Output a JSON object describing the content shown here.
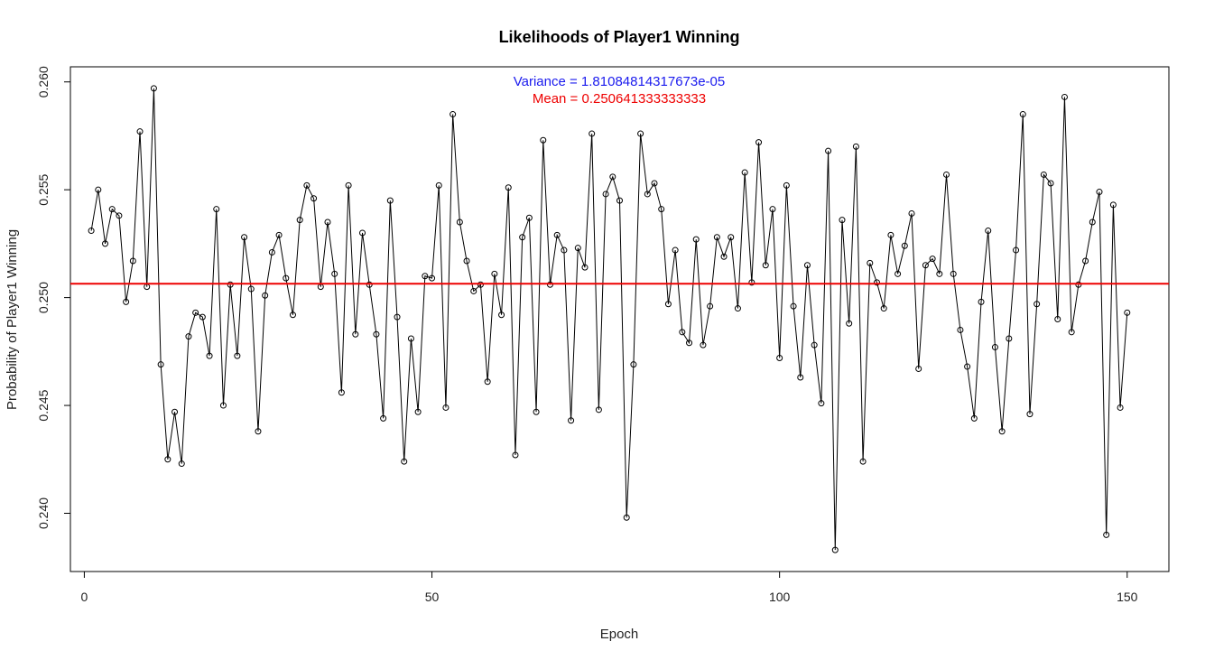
{
  "chart_data": {
    "type": "line",
    "title": "Likelihoods of Player1 Winning",
    "xlabel": "Epoch",
    "ylabel": "Probability of Player1 Winning",
    "xlim": [
      -2,
      156
    ],
    "ylim": [
      0.2373,
      0.2607
    ],
    "xticks": [
      0,
      50,
      100,
      150
    ],
    "yticks": [
      0.24,
      0.245,
      0.25,
      0.255,
      0.26
    ],
    "ytick_labels": [
      "0.240",
      "0.245",
      "0.250",
      "0.255",
      "0.260"
    ],
    "xtick_labels": [
      "0",
      "50",
      "100",
      "150"
    ],
    "grid": false,
    "series": [
      {
        "x": [
          1,
          2,
          3,
          4,
          5,
          6,
          7,
          8,
          9,
          10,
          11,
          12,
          13,
          14,
          15,
          16,
          17,
          18,
          19,
          20,
          21,
          22,
          23,
          24,
          25,
          26,
          27,
          28,
          29,
          30,
          31,
          32,
          33,
          34,
          35,
          36,
          37,
          38,
          39,
          40,
          41,
          42,
          43,
          44,
          45,
          46,
          47,
          48,
          49,
          50,
          51,
          52,
          53,
          54,
          55,
          56,
          57,
          58,
          59,
          60,
          61,
          62,
          63,
          64,
          65,
          66,
          67,
          68,
          69,
          70,
          71,
          72,
          73,
          74,
          75,
          76,
          77,
          78,
          79,
          80,
          81,
          82,
          83,
          84,
          85,
          86,
          87,
          88,
          89,
          90,
          91,
          92,
          93,
          94,
          95,
          96,
          97,
          98,
          99,
          100,
          101,
          102,
          103,
          104,
          105,
          106,
          107,
          108,
          109,
          110,
          111,
          112,
          113,
          114,
          115,
          116,
          117,
          118,
          119,
          120,
          121,
          122,
          123,
          124,
          125,
          126,
          127,
          128,
          129,
          130,
          131,
          132,
          133,
          134,
          135,
          136,
          137,
          138,
          139,
          140,
          141,
          142,
          143,
          144,
          145,
          146,
          147,
          148,
          149,
          150
        ],
        "y": [
          0.2531,
          0.255,
          0.2525,
          0.2541,
          0.2538,
          0.2498,
          0.2517,
          0.2577,
          0.2505,
          0.2597,
          0.2469,
          0.2425,
          0.2447,
          0.2423,
          0.2482,
          0.2493,
          0.2491,
          0.2473,
          0.2541,
          0.245,
          0.2506,
          0.2473,
          0.2528,
          0.2504,
          0.2438,
          0.2501,
          0.2521,
          0.2529,
          0.2509,
          0.2492,
          0.2536,
          0.2552,
          0.2546,
          0.2505,
          0.2535,
          0.2511,
          0.2456,
          0.2552,
          0.2483,
          0.253,
          0.2506,
          0.2483,
          0.2444,
          0.2545,
          0.2491,
          0.2424,
          0.2481,
          0.2447,
          0.251,
          0.2509,
          0.2552,
          0.2449,
          0.2585,
          0.2535,
          0.2517,
          0.2503,
          0.2506,
          0.2461,
          0.2511,
          0.2492,
          0.2551,
          0.2427,
          0.2528,
          0.2537,
          0.2447,
          0.2573,
          0.2506,
          0.2529,
          0.2522,
          0.2443,
          0.2523,
          0.2514,
          0.2576,
          0.2448,
          0.2548,
          0.2556,
          0.2545,
          0.2398,
          0.2469,
          0.2576,
          0.2548,
          0.2553,
          0.2541,
          0.2497,
          0.2522,
          0.2484,
          0.2479,
          0.2527,
          0.2478,
          0.2496,
          0.2528,
          0.2519,
          0.2528,
          0.2495,
          0.2558,
          0.2507,
          0.2572,
          0.2515,
          0.2541,
          0.2472,
          0.2552,
          0.2496,
          0.2463,
          0.2515,
          0.2478,
          0.2451,
          0.2568,
          0.2383,
          0.2536,
          0.2488,
          0.257,
          0.2424,
          0.2516,
          0.2507,
          0.2495,
          0.2529,
          0.2511,
          0.2524,
          0.2539,
          0.2467,
          0.2515,
          0.2518,
          0.2511,
          0.2557,
          0.2511,
          0.2485,
          0.2468,
          0.2444,
          0.2498,
          0.2531,
          0.2477,
          0.2438,
          0.2481,
          0.2522,
          0.2585,
          0.2446,
          0.2497,
          0.2557,
          0.2553,
          0.249,
          0.2593,
          0.2484,
          0.2506,
          0.2517,
          0.2535,
          0.2549,
          0.239,
          0.2543,
          0.2449,
          0.2493
        ]
      }
    ],
    "mean_line": 0.250641333333333,
    "annotations": {
      "variance": "Variance = 1.81084814317673e-05",
      "mean": "Mean = 0.250641333333333"
    },
    "colors": {
      "line": "#000000",
      "mean_line": "#ee0000",
      "variance_text": "#1a1aee",
      "mean_text": "#ee0000"
    }
  }
}
